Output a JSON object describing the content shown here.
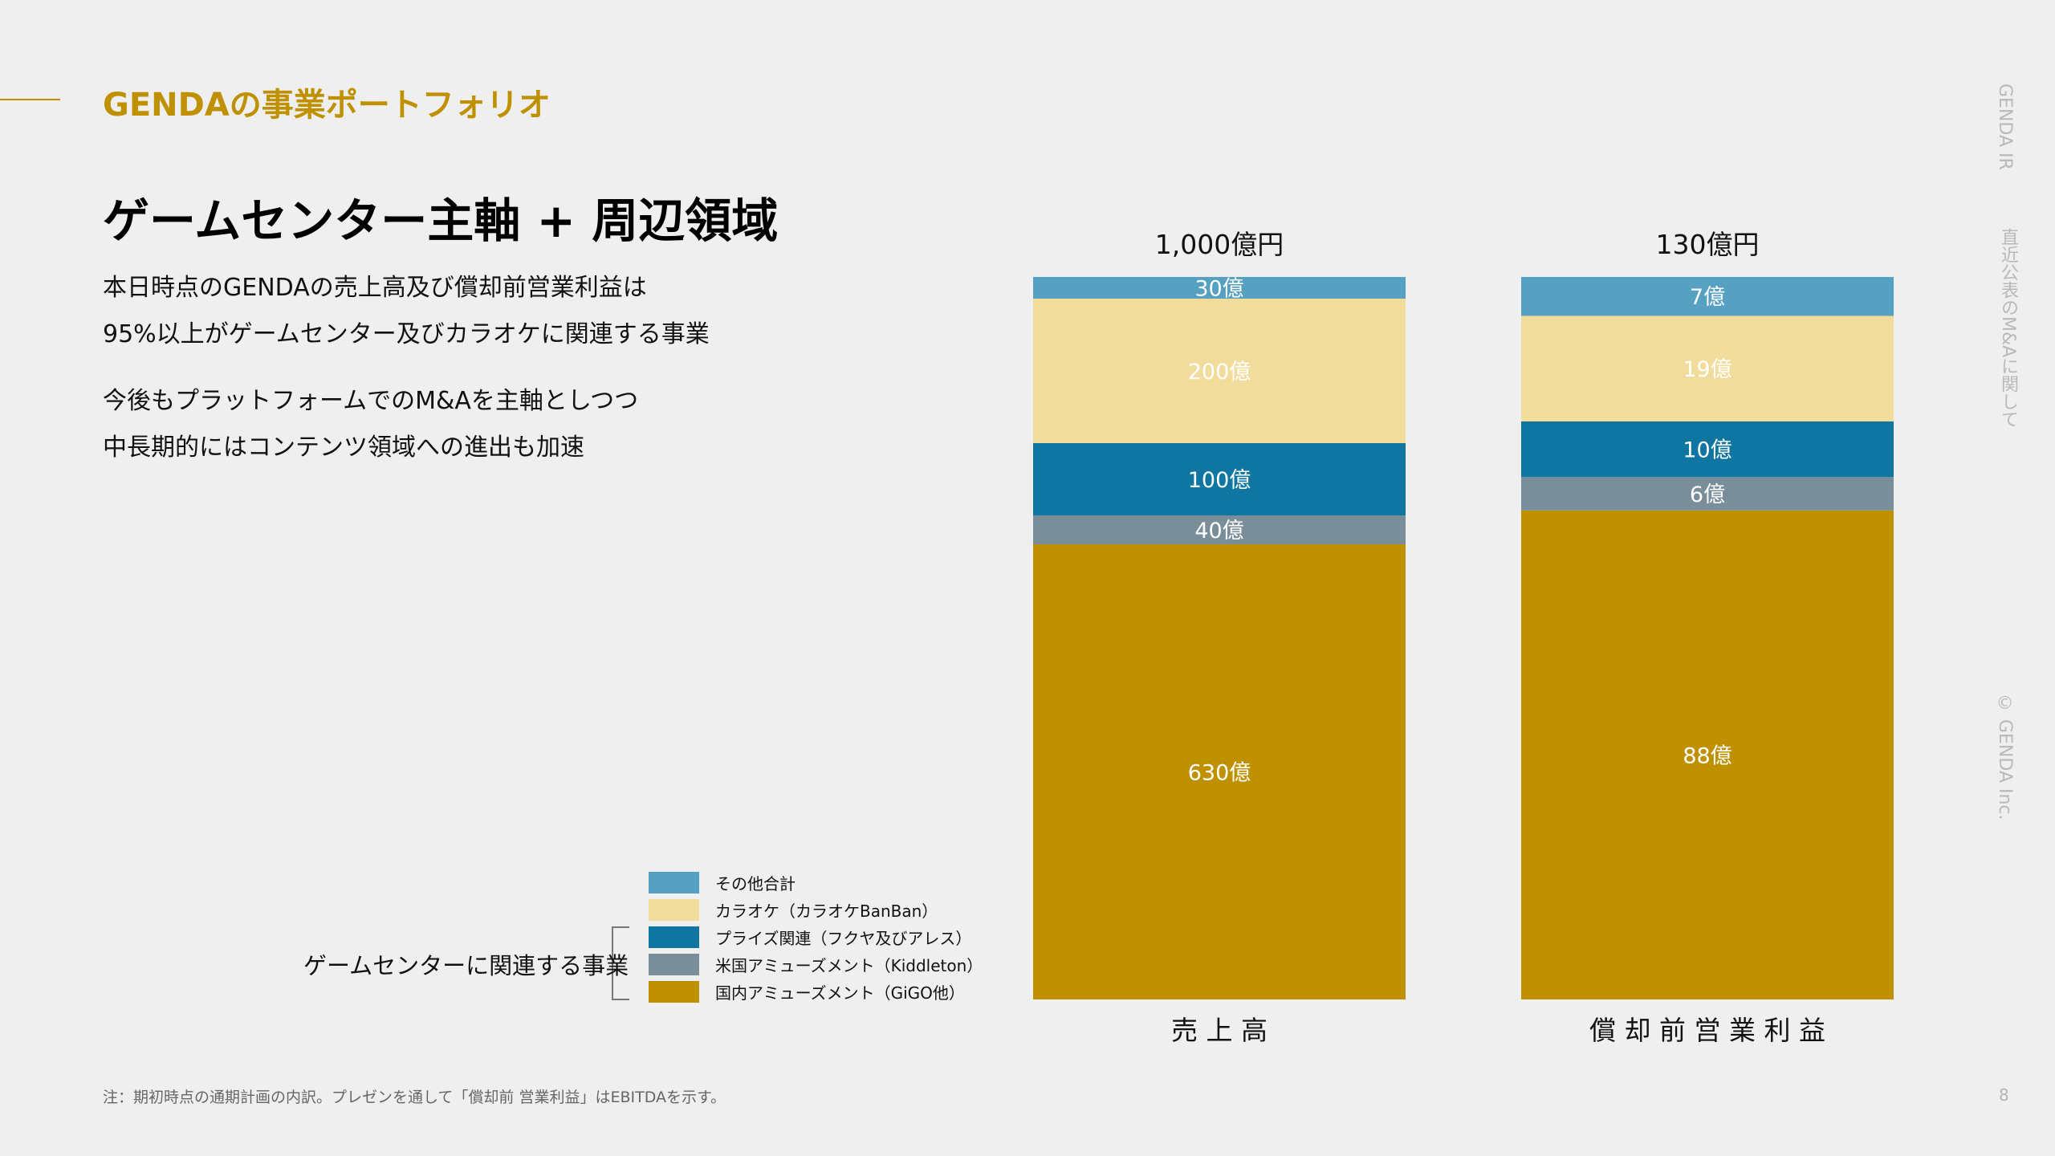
{
  "header": {
    "section_title": "GENDAの事業ポートフォリオ",
    "headline": "ゲームセンター主軸 + 周辺領域"
  },
  "body": {
    "paragraph1_line1": "本日時点のGENDAの売上高及び償却前営業利益は",
    "paragraph1_line2": "95%以上がゲームセンター及びカラオケに関連する事業",
    "paragraph2_line1": "今後もプラットフォームでのM&Aを主軸としつつ",
    "paragraph2_line2": "中長期的にはコンテンツ領域への進出も加速"
  },
  "side": {
    "ir": "GENDA IR",
    "topic": "直近公表のM&Aに関して",
    "copyright": "© GENDA Inc."
  },
  "footer": {
    "note": "注：期初時点の通期計画の内訳。プレゼンを通して「償却前 営業利益」はEBITDAを示す。",
    "page_number": "8"
  },
  "legend": {
    "bracket_label": "ゲームセンターに関連する事業"
  },
  "colors": {
    "other": "#56a0c1",
    "karaoke": "#f2dc9b",
    "prize": "#0f76a1",
    "us_amusement": "#7a8e99",
    "domestic_amusement": "#bf9100"
  },
  "chart_data": {
    "type": "bar",
    "stacked": true,
    "normalized": true,
    "categories": [
      "売 上 高",
      "償 却 前 営 業 利 益"
    ],
    "totals": [
      "1,000億円",
      "130億円"
    ],
    "series": [
      {
        "name": "国内アミューズメント（GiGO他）",
        "color": "#bf9100",
        "values": [
          630,
          88
        ],
        "labels": [
          "630億",
          "88億"
        ]
      },
      {
        "name": "米国アミューズメント（Kiddleton）",
        "color": "#7a8e99",
        "values": [
          40,
          6
        ],
        "labels": [
          "40億",
          "6億"
        ]
      },
      {
        "name": "プライズ関連（フクヤ及びアレス）",
        "color": "#0f76a1",
        "values": [
          100,
          10
        ],
        "labels": [
          "100億",
          "10億"
        ]
      },
      {
        "name": "カラオケ（カラオケBanBan）",
        "color": "#f2dc9b",
        "values": [
          200,
          19
        ],
        "labels": [
          "200億",
          "19億"
        ]
      },
      {
        "name": "その他合計",
        "color": "#56a0c1",
        "values": [
          30,
          7
        ],
        "labels": [
          "30億",
          "7億"
        ]
      }
    ],
    "legend_position": "bottom-left",
    "grid": false
  }
}
